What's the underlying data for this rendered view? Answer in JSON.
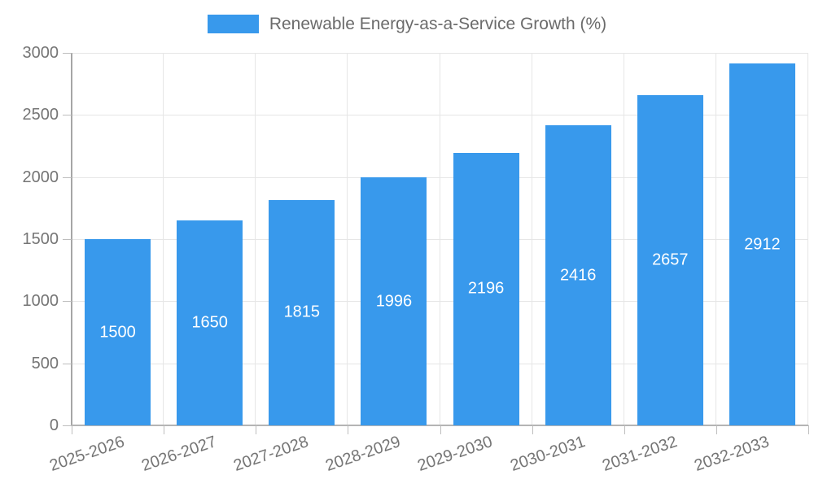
{
  "legend": {
    "label": "Renewable Energy-as-a-Service Growth (%)"
  },
  "chart_data": {
    "type": "bar",
    "title": "Renewable Energy-as-a-Service Growth (%)",
    "categories": [
      "2025-2026",
      "2026-2027",
      "2027-2028",
      "2028-2029",
      "2029-2030",
      "2030-2031",
      "2031-2032",
      "2032-2033"
    ],
    "values": [
      1500,
      1650,
      1815,
      1996,
      2196,
      2416,
      2657,
      2912
    ],
    "value_labels": [
      "1500",
      "1650",
      "1815",
      "1996",
      "2196",
      "2416",
      "2657",
      "2912"
    ],
    "xlabel": "",
    "ylabel": "",
    "ylim": [
      0,
      3000
    ],
    "yticks": [
      0,
      500,
      1000,
      1500,
      2000,
      2500,
      3000
    ],
    "grid": true,
    "legend_position": "top",
    "value_labels_inside_bars": true,
    "x_label_rotation_deg": -19
  },
  "colors": {
    "bar": "#3899ec",
    "grid": "#e6e6e6",
    "y_axis_line": "#a6a6a6",
    "x_axis_line": "#b4b4b4",
    "tick_mark": "#bdbdbd",
    "tick_label": "#757575",
    "legend_text": "#6b6b6b",
    "value_label": "#ffffff",
    "background": "#ffffff"
  }
}
